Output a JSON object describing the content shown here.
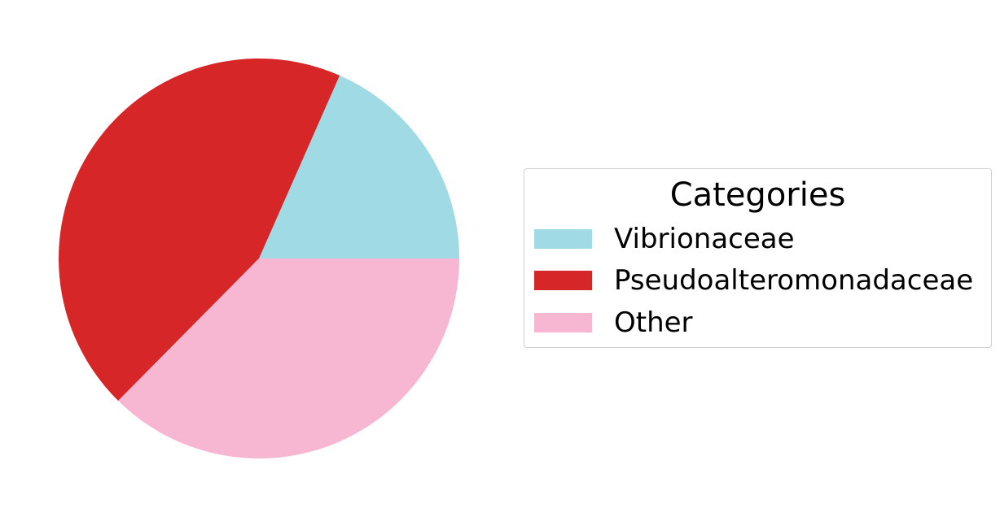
{
  "chart_data": {
    "type": "pie",
    "slices": [
      {
        "label": "Vibrionaceae",
        "value": 18.4,
        "color": "#9fdae5"
      },
      {
        "label": "Pseudoalteromonadaceae",
        "value": 44.2,
        "color": "#d62628"
      },
      {
        "label": "Other",
        "value": 37.4,
        "color": "#f7b6d2"
      }
    ],
    "legend": {
      "title": "Categories",
      "placement": "right",
      "items": [
        "Vibrionaceae",
        "Pseudoalteromonadaceae",
        "Other"
      ]
    },
    "start_angle_deg": 0,
    "direction": "counterclockwise"
  }
}
